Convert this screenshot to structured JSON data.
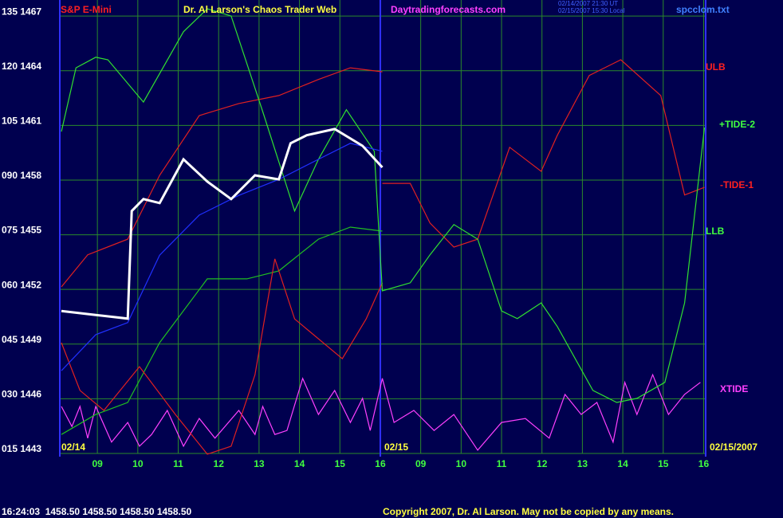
{
  "chart_data": {
    "type": "line",
    "titles": [
      {
        "text": "S&P E-Mini",
        "color": "#ff2020"
      },
      {
        "text": "Dr. Al Larson's Chaos Trader Web",
        "color": "#ffff40"
      },
      {
        "text": "Daytradingforecasts.com",
        "color": "#ff40ff"
      },
      {
        "text": "spcclom.txt",
        "color": "#4080ff"
      }
    ],
    "timestamps": [
      "02/14/2007 21:30 UT",
      "02/15/2007 15:30 Local"
    ],
    "date_labels": [
      "02/14",
      "02/15",
      "02/15/2007"
    ],
    "annotations": [
      {
        "text": "ULB",
        "color": "#ff2020"
      },
      {
        "text": "+TIDE-2",
        "color": "#40ff40"
      },
      {
        "text": "-TIDE-1",
        "color": "#ff2020"
      },
      {
        "text": "LLB",
        "color": "#40ff40"
      },
      {
        "text": "XTIDE",
        "color": "#ff40ff"
      }
    ],
    "status": "16:24:03  1458.50 1458.50 1458.50 1458.50",
    "copyright": "Copyright 2007, Dr. Al Larson. May not be copied by any means.",
    "xlim": [
      -0.93,
      15.05
    ],
    "ylim": [
      15,
      137
    ],
    "xticks": [
      {
        "value": 0,
        "label": "09"
      },
      {
        "value": 1,
        "label": "10"
      },
      {
        "value": 2,
        "label": "11"
      },
      {
        "value": 3,
        "label": "12"
      },
      {
        "value": 4,
        "label": "13"
      },
      {
        "value": 5,
        "label": "14"
      },
      {
        "value": 6,
        "label": "15"
      },
      {
        "value": 7,
        "label": "16"
      },
      {
        "value": 8,
        "label": "09"
      },
      {
        "value": 9,
        "label": "10"
      },
      {
        "value": 10,
        "label": "11"
      },
      {
        "value": 11,
        "label": "12"
      },
      {
        "value": 12,
        "label": "13"
      },
      {
        "value": 13,
        "label": "14"
      },
      {
        "value": 14,
        "label": "15"
      },
      {
        "value": 15,
        "label": "16"
      }
    ],
    "yticks": [
      {
        "value": 15,
        "label": "015 1443"
      },
      {
        "value": 30,
        "label": "030 1446"
      },
      {
        "value": 45,
        "label": "045 1449"
      },
      {
        "value": 60,
        "label": "060 1452"
      },
      {
        "value": 75,
        "label": "075 1455"
      },
      {
        "value": 90,
        "label": "090 1458"
      },
      {
        "value": 105,
        "label": "105 1461"
      },
      {
        "value": 120,
        "label": "120 1464"
      },
      {
        "value": 135,
        "label": "135 1467"
      }
    ],
    "grid": true,
    "grid_color": "#2a8a2a",
    "frame_color": "#3030ff",
    "series": [
      {
        "color": "#ff40ff",
        "x": [
          -0.89,
          -0.63,
          -0.43,
          -0.24,
          -0.04,
          0.35,
          0.75,
          1.04,
          1.34,
          1.73,
          2.13,
          2.52,
          2.91,
          3.5,
          3.9,
          4.09,
          4.39,
          4.69,
          5.08,
          5.47,
          5.87,
          6.26,
          6.56,
          6.75,
          7.05,
          7.34,
          7.83,
          8.33,
          8.82,
          9.41,
          10,
          10.59,
          11.18,
          11.57,
          11.97,
          12.36,
          12.76,
          13.05,
          13.35,
          13.74,
          14.13,
          14.53,
          14.92
        ],
        "values": [
          27.9,
          22.4,
          27.9,
          19.2,
          27.9,
          18.1,
          23.5,
          17,
          20.2,
          26.8,
          17,
          24.6,
          19.2,
          26.8,
          20.2,
          27.9,
          20.2,
          21.3,
          35.6,
          25.7,
          32.3,
          23.5,
          30.1,
          21.3,
          35.6,
          23.5,
          26.8,
          21.3,
          25.7,
          15.9,
          23.5,
          24.6,
          19.2,
          31.2,
          25.7,
          29,
          18.1,
          34.5,
          25.7,
          36.6,
          25.7,
          31.2,
          34.5
        ]
      },
      {
        "color": "#20c020",
        "x": [
          -0.89,
          -0.04,
          0.75,
          1.54,
          2.72,
          3.7,
          4.49,
          5.47,
          6.26,
          7.05
        ],
        "values": [
          20.2,
          25.7,
          29,
          45.4,
          62.9,
          62.9,
          65.1,
          73.8,
          77.1,
          76
        ]
      },
      {
        "color": "#e02020",
        "x": [
          -0.89,
          -0.43,
          0.16,
          1.04,
          1.93,
          2.72,
          3.31,
          3.9,
          4.39,
          4.88,
          6.06,
          6.65,
          7.05
        ],
        "values": [
          45.4,
          32.3,
          26.8,
          38.8,
          25.7,
          14.8,
          17,
          36.6,
          68.4,
          51.9,
          41,
          51.9,
          61.8
        ]
      },
      {
        "color": "#e02020",
        "x": [
          -0.89,
          -0.24,
          0.75,
          1.54,
          2.52,
          3.5,
          4.49,
          5.47,
          6.26,
          7.05
        ],
        "values": [
          60.7,
          69.5,
          73.8,
          91.3,
          107.7,
          111,
          113.2,
          117.6,
          120.8,
          119.7
        ]
      },
      {
        "color": "#e02020",
        "x": [
          7.05,
          7.74,
          8.23,
          8.82,
          9.41,
          10.2,
          10.98,
          11.38,
          12.17,
          12.95,
          13.94,
          14.53,
          15.02
        ],
        "values": [
          89.1,
          89.1,
          78.2,
          71.6,
          73.8,
          99,
          92.4,
          102.3,
          118.7,
          123,
          113.2,
          85.9,
          88
        ]
      },
      {
        "color": "#30e030",
        "x": [
          -0.89,
          -0.53,
          -0.04,
          0.26,
          1.14,
          2.13,
          2.72,
          3.31,
          4.09,
          4.88,
          5.47,
          6.16,
          6.85,
          7.05,
          7.74,
          8.23,
          8.82,
          9.41,
          10,
          10.39,
          10.98,
          11.38,
          12.26,
          12.85,
          13.35,
          14.04,
          14.53,
          15.02
        ],
        "values": [
          103.3,
          120.8,
          123.7,
          123,
          111.4,
          130.7,
          137,
          135,
          108.8,
          81.5,
          95.7,
          109.3,
          97.9,
          59.6,
          61.8,
          69.5,
          77.8,
          73.8,
          54.1,
          52,
          56.3,
          49.8,
          32.3,
          29,
          30.1,
          34.5,
          56.3,
          104.4
        ]
      },
      {
        "color": "#2030ff",
        "x": [
          -0.89,
          -0.04,
          0.75,
          1.54,
          2.52,
          3.5,
          4.49,
          5.47,
          6.26,
          7.05
        ],
        "values": [
          37.7,
          47.6,
          50.9,
          69.4,
          80.4,
          85.8,
          90.2,
          95.7,
          100.1,
          97.9
        ]
      },
      {
        "color": "#ffffff",
        "x": [
          -0.89,
          -0.04,
          0.75,
          0.85,
          1.14,
          1.54,
          2.13,
          2.72,
          3.31,
          3.9,
          4.49,
          4.78,
          5.18,
          5.87,
          6.56,
          7.05
        ],
        "values": [
          54.1,
          53,
          52,
          81.5,
          84.8,
          83.7,
          95.7,
          89.6,
          84.8,
          91.3,
          90.2,
          100.1,
          102.3,
          104,
          99.4,
          93.5
        ]
      }
    ]
  }
}
